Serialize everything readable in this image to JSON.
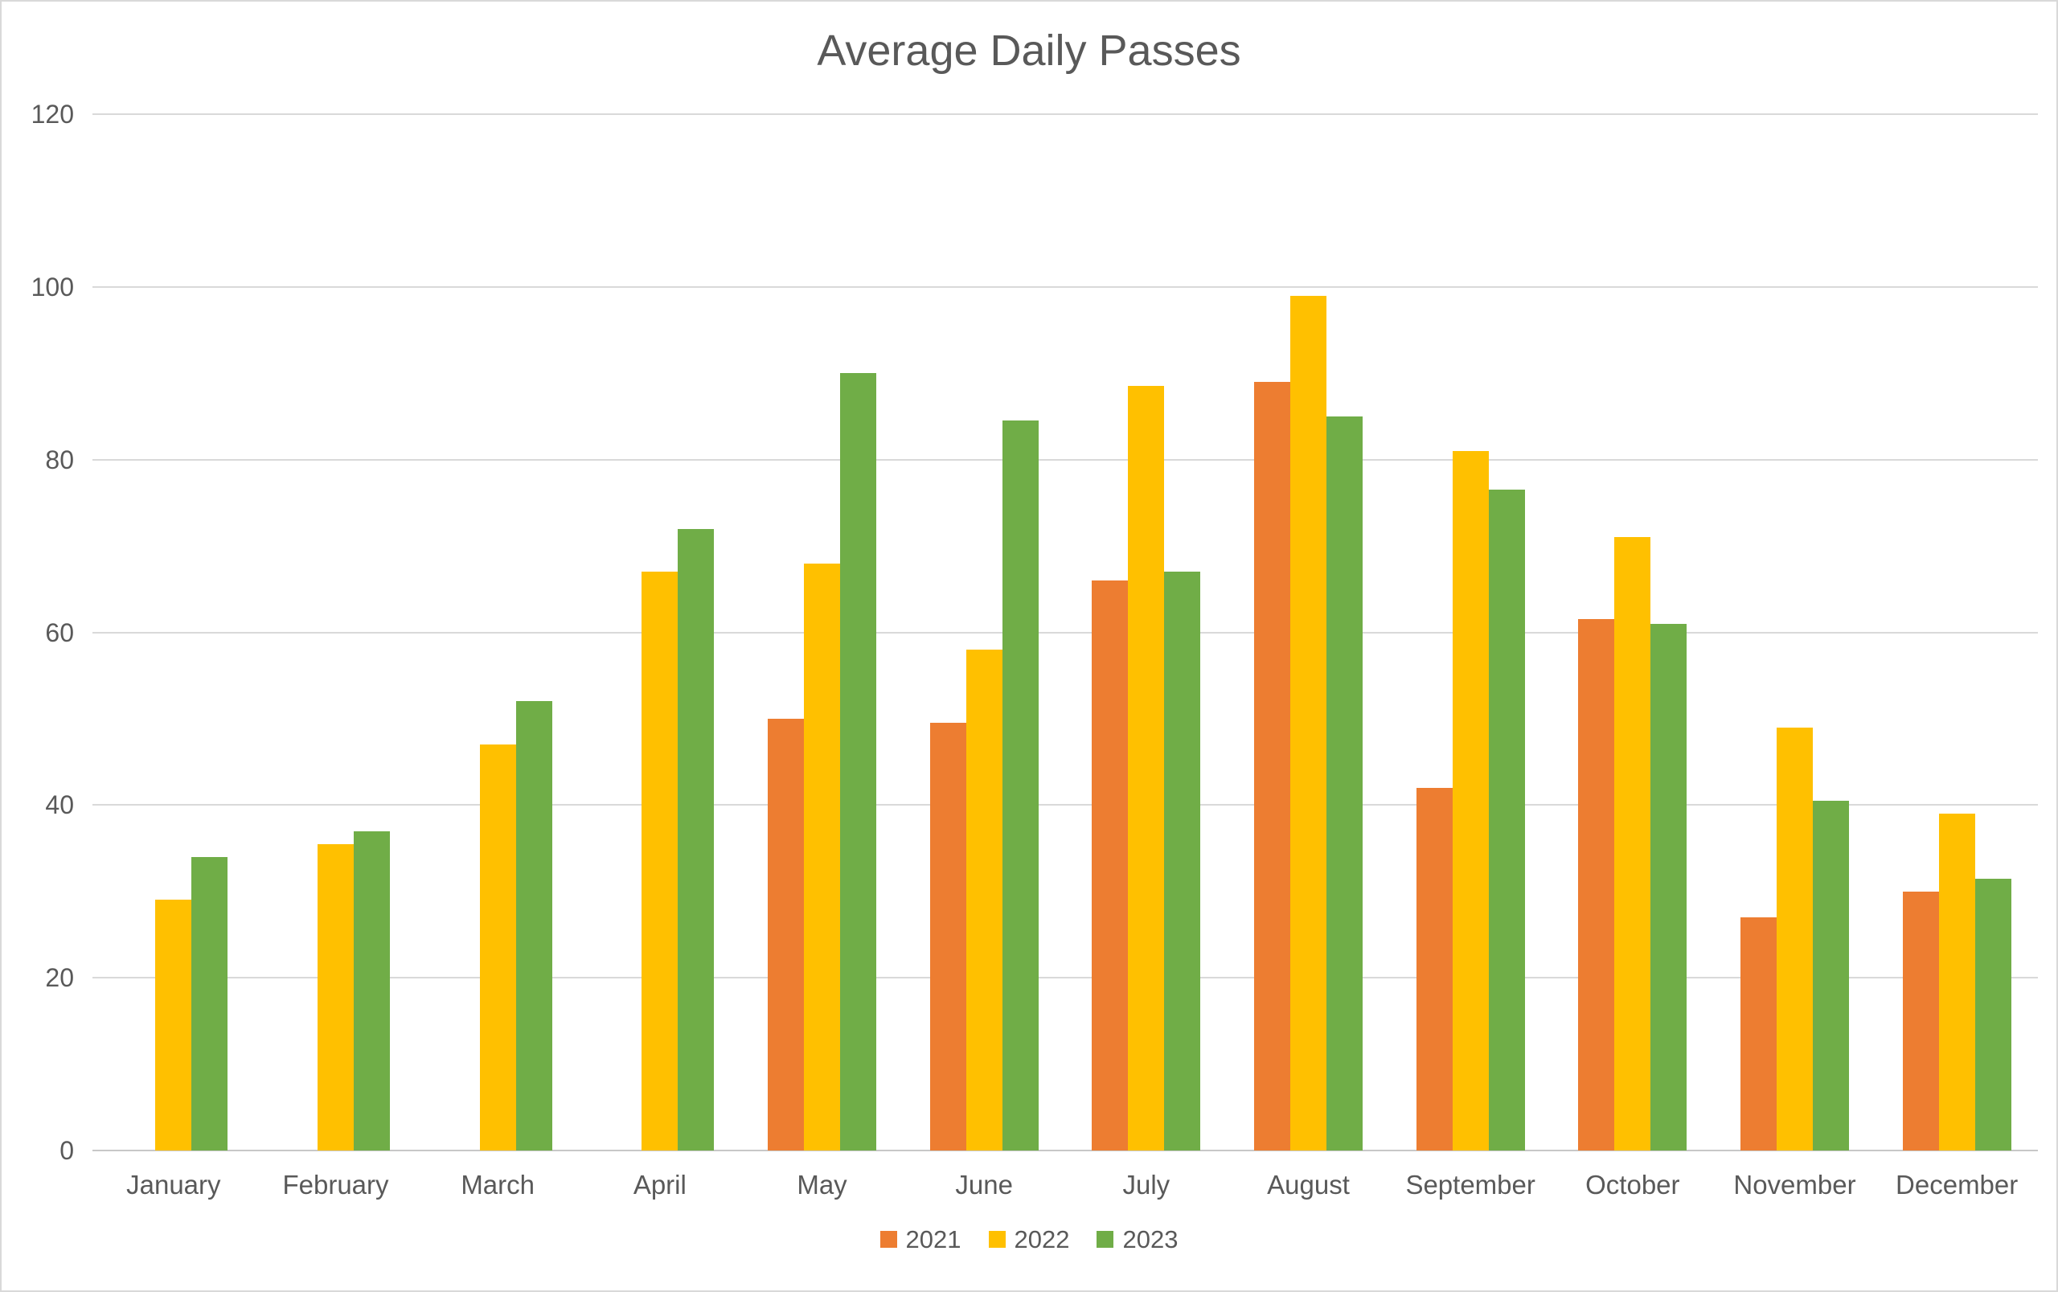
{
  "chart_data": {
    "type": "bar",
    "title": "Average Daily Passes",
    "categories": [
      "January",
      "February",
      "March",
      "April",
      "May",
      "June",
      "July",
      "August",
      "September",
      "October",
      "November",
      "December"
    ],
    "series": [
      {
        "name": "2021",
        "color": "#ED7D31",
        "values": [
          null,
          null,
          null,
          null,
          50,
          49.5,
          66,
          89,
          42,
          61.5,
          27,
          30
        ]
      },
      {
        "name": "2022",
        "color": "#FFC000",
        "values": [
          29,
          35.5,
          47,
          67,
          68,
          58,
          88.5,
          99,
          81,
          71,
          49,
          39
        ]
      },
      {
        "name": "2023",
        "color": "#70AD47",
        "values": [
          34,
          37,
          52,
          72,
          90,
          84.5,
          67,
          85,
          76.5,
          61,
          40.5,
          31.5
        ]
      }
    ],
    "ylim": [
      0,
      120
    ],
    "yticks": [
      0,
      20,
      40,
      60,
      80,
      100,
      120
    ],
    "xlabel": "",
    "ylabel": "",
    "grid": "horizontal",
    "legend_position": "bottom",
    "text_color": "#595959",
    "gridline_color": "#D9D9D9",
    "axis_line_color": "#C8C8C8",
    "background_color": "#FFFFFF",
    "border_color": "#D9D9D9"
  }
}
